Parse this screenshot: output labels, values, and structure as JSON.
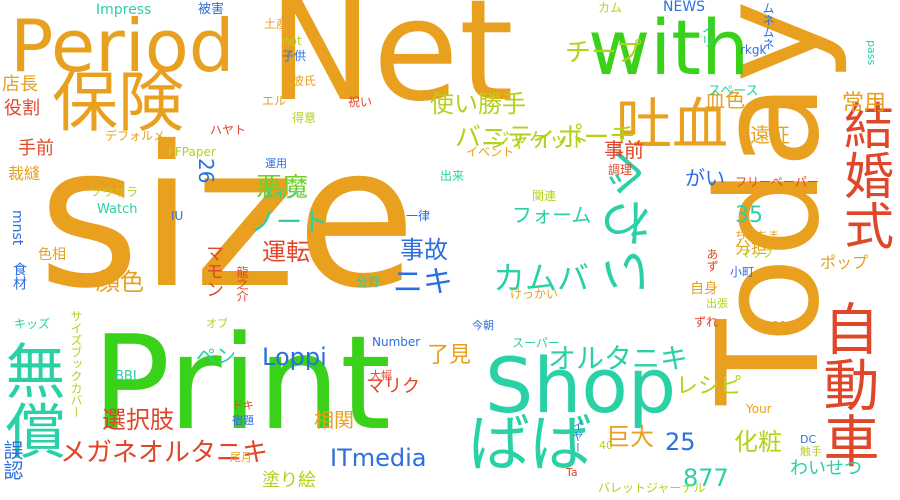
{
  "words": [
    {
      "text": "size",
      "color": "#e8a01e"
    },
    {
      "text": "Net",
      "color": "#e8a01e"
    },
    {
      "text": "Print",
      "color": "#3ad11a"
    },
    {
      "text": "Today",
      "color": "#e8a01e"
    },
    {
      "text": "Period",
      "color": "#e8a01e"
    },
    {
      "text": "保険",
      "color": "#e8a01e"
    },
    {
      "text": "Shop",
      "color": "#2ad0a6"
    },
    {
      "text": "with",
      "color": "#3ad11a"
    },
    {
      "text": "ばば",
      "color": "#2ad0a6"
    },
    {
      "text": "無償",
      "color": "#2ad0a6"
    },
    {
      "text": "自動車",
      "color": "#e0462a"
    },
    {
      "text": "結婚式",
      "color": "#e0462a"
    },
    {
      "text": "いわぐ",
      "color": "#2ad0a6"
    },
    {
      "text": "吐血",
      "color": "#e8a01e"
    },
    {
      "text": "オルタニキ",
      "color": "#2ad0a6"
    },
    {
      "text": "メガネオルタニキ",
      "color": "#e0462a"
    },
    {
      "text": "カムバ",
      "color": "#2ad0a6"
    },
    {
      "text": "Loppi",
      "color": "#2c6fe0"
    },
    {
      "text": "ITmedia",
      "color": "#2c6fe0"
    },
    {
      "text": "悪魔",
      "color": "#6fd12a"
    },
    {
      "text": "使い勝手",
      "color": "#b5d11a"
    },
    {
      "text": "チープ",
      "color": "#b5d11a"
    },
    {
      "text": "バニティポーチ",
      "color": "#b5d11a"
    },
    {
      "text": "ジャケット",
      "color": "#b5d11a"
    },
    {
      "text": "ノート",
      "color": "#2ad0a6"
    },
    {
      "text": "運転",
      "color": "#e0462a"
    },
    {
      "text": "事故",
      "color": "#2c6fe0"
    },
    {
      "text": "ニキ",
      "color": "#2c6fe0"
    },
    {
      "text": "フォーム",
      "color": "#2ad0a6"
    },
    {
      "text": "顔色",
      "color": "#e8a01e"
    },
    {
      "text": "選択肢",
      "color": "#e0462a"
    },
    {
      "text": "巨大",
      "color": "#e8a01e"
    },
    {
      "text": "化粧",
      "color": "#b5d11a"
    },
    {
      "text": "レシピ",
      "color": "#b5d11a"
    },
    {
      "text": "了見",
      "color": "#e8a01e"
    },
    {
      "text": "相関",
      "color": "#e8a01e"
    },
    {
      "text": "塗り絵",
      "color": "#b5d11a"
    },
    {
      "text": "877",
      "color": "#2ad0a6"
    },
    {
      "text": "25",
      "color": "#2c6fe0"
    },
    {
      "text": "35",
      "color": "#2ad0a6"
    },
    {
      "text": "26",
      "color": "#2c6fe0"
    },
    {
      "text": "血色",
      "color": "#e8a01e"
    },
    {
      "text": "遠征",
      "color": "#e8a01e"
    },
    {
      "text": "常用",
      "color": "#e8a01e"
    },
    {
      "text": "事前",
      "color": "#e0462a"
    },
    {
      "text": "がい",
      "color": "#2c6fe0"
    },
    {
      "text": "店長",
      "color": "#e8a01e"
    },
    {
      "text": "役割",
      "color": "#e0462a"
    },
    {
      "text": "手前",
      "color": "#e0462a"
    },
    {
      "text": "裁縫",
      "color": "#e8a01e"
    },
    {
      "text": "誤認",
      "color": "#2c6fe0"
    },
    {
      "text": "ペン",
      "color": "#2ad0a6"
    },
    {
      "text": "マリク",
      "color": "#e0462a"
    },
    {
      "text": "わいせつ",
      "color": "#2ad0a6"
    },
    {
      "text": "NEWS",
      "color": "#2c6fe0"
    },
    {
      "text": "Impress",
      "color": "#2ad0a6"
    },
    {
      "text": "被害",
      "color": "#2c6fe0"
    },
    {
      "text": "カム",
      "color": "#b5d11a"
    },
    {
      "text": "ムネムネ",
      "color": "#2c6fe0"
    },
    {
      "text": "土産",
      "color": "#e8a01e"
    },
    {
      "text": "not",
      "color": "#b5d11a"
    },
    {
      "text": "子供",
      "color": "#2c6fe0"
    },
    {
      "text": "ノリ",
      "color": "#2ad0a6"
    },
    {
      "text": "rkgk",
      "color": "#2c6fe0"
    },
    {
      "text": "彼氏",
      "color": "#e8a01e"
    },
    {
      "text": "エル",
      "color": "#e8a01e"
    },
    {
      "text": "スペース",
      "color": "#2ad0a6"
    },
    {
      "text": "祝い",
      "color": "#e0462a"
    },
    {
      "text": "得意",
      "color": "#b5d11a"
    },
    {
      "text": "ハヤト",
      "color": "#e0462a"
    },
    {
      "text": "FFPaper",
      "color": "#b5d11a"
    },
    {
      "text": "デフォルメ",
      "color": "#e8a01e"
    },
    {
      "text": "運用",
      "color": "#2c6fe0"
    },
    {
      "text": "イベント",
      "color": "#e8a01e"
    },
    {
      "text": "調理",
      "color": "#e0462a"
    },
    {
      "text": "出来",
      "color": "#2ad0a6"
    },
    {
      "text": "フリーペーパー",
      "color": "#e0462a"
    },
    {
      "text": "ソウサラ",
      "color": "#b5d11a"
    },
    {
      "text": "メイン",
      "color": "#2ad0a6"
    },
    {
      "text": "Watch",
      "color": "#2ad0a6"
    },
    {
      "text": "関連",
      "color": "#b5d11a"
    },
    {
      "text": "一律",
      "color": "#2c6fe0"
    },
    {
      "text": "分担",
      "color": "#e8a01e"
    },
    {
      "text": "マモン",
      "color": "#e0462a"
    },
    {
      "text": "ちまちま",
      "color": "#e8a01e"
    },
    {
      "text": "マップ",
      "color": "#b5d11a"
    },
    {
      "text": "ポップ",
      "color": "#e8a01e"
    },
    {
      "text": "IU",
      "color": "#2c6fe0"
    },
    {
      "text": "mnst",
      "color": "#2c6fe0"
    },
    {
      "text": "食材",
      "color": "#2c6fe0"
    },
    {
      "text": "色相",
      "color": "#e8a01e"
    },
    {
      "text": "龍之介",
      "color": "#e0462a"
    },
    {
      "text": "分野",
      "color": "#2ad0a6"
    },
    {
      "text": "あず",
      "color": "#e0462a"
    },
    {
      "text": "小町",
      "color": "#2c6fe0"
    },
    {
      "text": "自身",
      "color": "#e8a01e"
    },
    {
      "text": "出張",
      "color": "#b5d11a"
    },
    {
      "text": "けっかい",
      "color": "#e8a01e"
    },
    {
      "text": "キッズ",
      "color": "#2ad0a6"
    },
    {
      "text": "オブ",
      "color": "#b5d11a"
    },
    {
      "text": "今朝",
      "color": "#2c6fe0"
    },
    {
      "text": "ずれ",
      "color": "#e0462a"
    },
    {
      "text": "1100",
      "color": "#e8a01e"
    },
    {
      "text": "pass",
      "color": "#2ad0a6"
    },
    {
      "text": "Number",
      "color": "#2c6fe0"
    },
    {
      "text": "スーパー",
      "color": "#2ad0a6"
    },
    {
      "text": "BBI",
      "color": "#2ad0a6"
    },
    {
      "text": "サイズブックカバー",
      "color": "#b5d11a"
    },
    {
      "text": "大幅",
      "color": "#e0462a"
    },
    {
      "text": "ドキ",
      "color": "#e0462a"
    },
    {
      "text": "宿題",
      "color": "#2c6fe0"
    },
    {
      "text": "尾月",
      "color": "#e8a01e"
    },
    {
      "text": "イヤー",
      "color": "#2c6fe0"
    },
    {
      "text": "Your",
      "color": "#e8a01e"
    },
    {
      "text": "DC",
      "color": "#2c6fe0"
    },
    {
      "text": "触手",
      "color": "#b5d11a"
    },
    {
      "text": "Ta",
      "color": "#e0462a"
    },
    {
      "text": "40",
      "color": "#b5d11a"
    },
    {
      "text": "バレットジャーナル",
      "color": "#b5d11a"
    }
  ]
}
